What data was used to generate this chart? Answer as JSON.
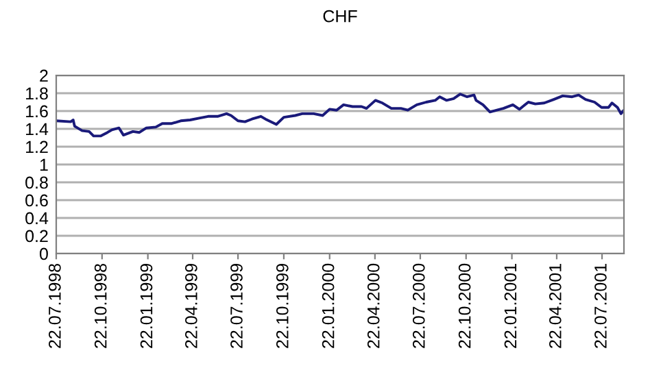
{
  "chart_data": {
    "type": "line",
    "title": "CHF",
    "x": [
      "1998-07-22",
      "1998-08-20",
      "1998-08-25",
      "1998-08-28",
      "1998-09-12",
      "1998-09-26",
      "1998-10-05",
      "1998-10-19",
      "1998-11-02",
      "1998-11-11",
      "1998-11-25",
      "1998-12-04",
      "1998-12-23",
      "1999-01-05",
      "1999-01-19",
      "1999-02-07",
      "1999-02-20",
      "1999-03-11",
      "1999-03-29",
      "1999-04-17",
      "1999-05-05",
      "1999-05-23",
      "1999-06-11",
      "1999-06-29",
      "1999-07-08",
      "1999-07-22",
      "1999-08-05",
      "1999-08-19",
      "1999-09-06",
      "1999-09-15",
      "1999-10-07",
      "1999-10-22",
      "1999-11-14",
      "1999-11-28",
      "1999-12-21",
      "2000-01-08",
      "2000-01-22",
      "2000-02-05",
      "2000-02-19",
      "2000-03-08",
      "2000-03-26",
      "2000-04-05",
      "2000-04-23",
      "2000-05-07",
      "2000-05-25",
      "2000-06-13",
      "2000-06-27",
      "2000-07-15",
      "2000-08-03",
      "2000-08-21",
      "2000-08-30",
      "2000-09-13",
      "2000-09-27",
      "2000-10-10",
      "2000-10-24",
      "2000-11-07",
      "2000-11-11",
      "2000-11-25",
      "2000-12-09",
      "2000-12-23",
      "2001-01-05",
      "2001-01-24",
      "2001-02-06",
      "2001-02-24",
      "2001-03-10",
      "2001-03-28",
      "2001-04-16",
      "2001-05-04",
      "2001-05-23",
      "2001-06-05",
      "2001-06-19",
      "2001-07-07",
      "2001-07-21",
      "2001-08-04",
      "2001-08-11",
      "2001-08-22",
      "2001-08-29",
      "2001-09-04"
    ],
    "series": [
      {
        "color": "#1a1a7a",
        "values": [
          1.49,
          1.48,
          1.5,
          1.43,
          1.38,
          1.37,
          1.32,
          1.32,
          1.36,
          1.39,
          1.41,
          1.33,
          1.37,
          1.36,
          1.41,
          1.42,
          1.46,
          1.46,
          1.49,
          1.5,
          1.52,
          1.54,
          1.54,
          1.57,
          1.55,
          1.49,
          1.48,
          1.51,
          1.54,
          1.51,
          1.45,
          1.53,
          1.55,
          1.57,
          1.57,
          1.55,
          1.62,
          1.61,
          1.67,
          1.65,
          1.65,
          1.63,
          1.72,
          1.69,
          1.63,
          1.63,
          1.61,
          1.67,
          1.7,
          1.72,
          1.76,
          1.72,
          1.74,
          1.79,
          1.76,
          1.78,
          1.72,
          1.67,
          1.59,
          1.61,
          1.63,
          1.67,
          1.62,
          1.7,
          1.68,
          1.69,
          1.73,
          1.77,
          1.76,
          1.78,
          1.73,
          1.7,
          1.64,
          1.64,
          1.69,
          1.64,
          1.57,
          1.61
        ]
      }
    ],
    "xlim": [
      "1998-07-22",
      "2001-09-04"
    ],
    "xticks": [
      {
        "value": "1998-07-22",
        "label": "22.07.1998"
      },
      {
        "value": "1998-10-22",
        "label": "22.10.1998"
      },
      {
        "value": "1999-01-22",
        "label": "22.01.1999"
      },
      {
        "value": "1999-04-22",
        "label": "22.04.1999"
      },
      {
        "value": "1999-07-22",
        "label": "22.07.1999"
      },
      {
        "value": "1999-10-22",
        "label": "22.10.1999"
      },
      {
        "value": "2000-01-22",
        "label": "22.01.2000"
      },
      {
        "value": "2000-04-22",
        "label": "22.04.2000"
      },
      {
        "value": "2000-07-22",
        "label": "22.07.2000"
      },
      {
        "value": "2000-10-22",
        "label": "22.10.2000"
      },
      {
        "value": "2001-01-22",
        "label": "22.01.2001"
      },
      {
        "value": "2001-04-22",
        "label": "22.04.2001"
      },
      {
        "value": "2001-07-22",
        "label": "22.07.2001"
      }
    ],
    "ylim": [
      0,
      2
    ],
    "yticks": [
      0,
      0.2,
      0.4,
      0.6,
      0.8,
      1,
      1.2,
      1.4,
      1.6,
      1.8,
      2
    ],
    "grid": "y",
    "marker": "none",
    "line_style": "solid"
  }
}
